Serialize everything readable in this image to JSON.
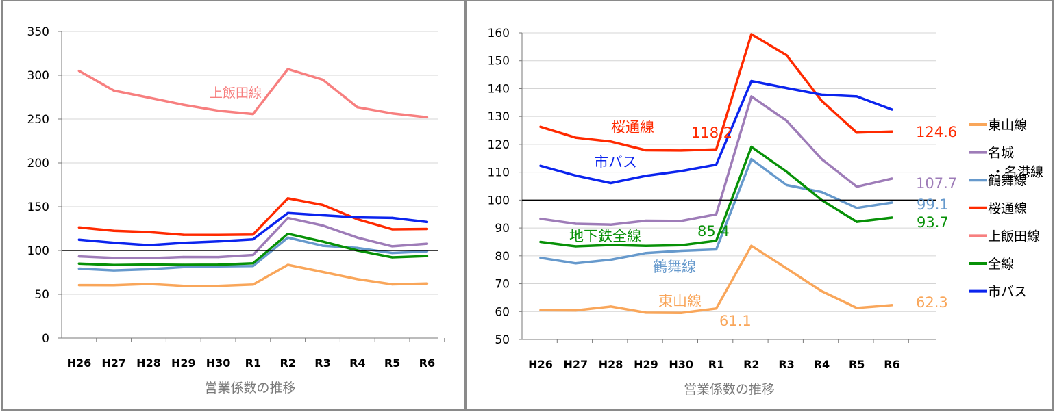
{
  "chart_data": [
    {
      "type": "line",
      "xlabel": "営業係数の推移",
      "ylim": [
        0,
        350
      ],
      "yticks": [
        0,
        50,
        100,
        150,
        200,
        250,
        300,
        350
      ],
      "ytick_labels": [
        "0",
        "50",
        "100",
        "150",
        "200",
        "250",
        "300",
        "350"
      ],
      "grid": true,
      "categories": [
        "H26",
        "H27",
        "H28",
        "H29",
        "H30",
        "R1",
        "R2",
        "R3",
        "R4",
        "R5",
        "R6"
      ],
      "reference_line": 100,
      "series": [
        {
          "name": "東山線",
          "color": "#f9a65a",
          "values": [
            60.5,
            60.4,
            61.8,
            59.6,
            59.5,
            61.1,
            83.6,
            75.5,
            67.3,
            61.3,
            62.3
          ]
        },
        {
          "name": "名城・名港線",
          "color": "#9e7cb8",
          "values": [
            93.3,
            91.5,
            91.2,
            92.6,
            92.5,
            94.9,
            137.2,
            128.5,
            114.7,
            104.8,
            107.7
          ]
        },
        {
          "name": "鶴舞線",
          "color": "#6699cc",
          "values": [
            79.3,
            77.3,
            78.6,
            81.0,
            81.8,
            82.3,
            114.7,
            105.4,
            102.9,
            97.2,
            99.1
          ]
        },
        {
          "name": "桜通線",
          "color": "#ff2a00",
          "values": [
            126.3,
            122.4,
            121.0,
            117.9,
            117.8,
            118.2,
            159.5,
            152.0,
            135.6,
            124.2,
            124.6
          ]
        },
        {
          "name": "上飯田線",
          "color": "#f77f7f",
          "values": [
            305.0,
            282.5,
            274.5,
            266.3,
            259.6,
            255.8,
            307.0,
            295.0,
            263.5,
            256.5,
            252.0
          ]
        },
        {
          "name": "全線",
          "color": "#079107",
          "values": [
            85.0,
            83.4,
            83.9,
            83.6,
            83.8,
            85.4,
            119.1,
            110.2,
            100.0,
            92.2,
            93.7
          ]
        },
        {
          "name": "市バス",
          "color": "#0b24ee",
          "values": [
            112.3,
            108.8,
            106.1,
            108.7,
            110.4,
            112.7,
            142.7,
            140.2,
            137.8,
            137.2,
            132.5
          ]
        }
      ],
      "annotations": [
        {
          "text": "上飯田線",
          "color": "#f77f7f"
        }
      ]
    },
    {
      "type": "line",
      "xlabel": "営業係数の推移",
      "ylim": [
        50,
        160
      ],
      "yticks": [
        50,
        60,
        70,
        80,
        90,
        100,
        110,
        120,
        130,
        140,
        150,
        160
      ],
      "ytick_labels": [
        "50",
        "60",
        "70",
        "80",
        "90",
        "100",
        "110",
        "120",
        "130",
        "140",
        "150",
        "160"
      ],
      "grid": true,
      "categories": [
        "H26",
        "H27",
        "H28",
        "H29",
        "H30",
        "R1",
        "R2",
        "R3",
        "R4",
        "R5",
        "R6"
      ],
      "reference_line": 100,
      "legend": {
        "position": "right",
        "entries": [
          {
            "label": "東山線",
            "color": "#f9a65a"
          },
          {
            "label": "名城",
            "label2": "・名港線",
            "color": "#9e7cb8"
          },
          {
            "label": "鶴舞線",
            "color": "#6699cc"
          },
          {
            "label": "桜通線",
            "color": "#ff2a00"
          },
          {
            "label": "上飯田線",
            "color": "#f77f7f"
          },
          {
            "label": "全線",
            "color": "#079107"
          },
          {
            "label": "市バス",
            "color": "#0b24ee"
          }
        ]
      },
      "series": [
        {
          "name": "東山線",
          "color": "#f9a65a",
          "values": [
            60.5,
            60.4,
            61.8,
            59.6,
            59.5,
            61.1,
            83.6,
            75.5,
            67.3,
            61.3,
            62.3
          ]
        },
        {
          "name": "名城・名港線",
          "color": "#9e7cb8",
          "values": [
            93.3,
            91.5,
            91.2,
            92.6,
            92.5,
            94.9,
            137.2,
            128.5,
            114.7,
            104.8,
            107.7
          ]
        },
        {
          "name": "鶴舞線",
          "color": "#6699cc",
          "values": [
            79.3,
            77.3,
            78.6,
            81.0,
            81.8,
            82.3,
            114.7,
            105.4,
            102.9,
            97.2,
            99.1
          ]
        },
        {
          "name": "桜通線",
          "color": "#ff2a00",
          "values": [
            126.3,
            122.4,
            121.0,
            117.9,
            117.8,
            118.2,
            159.5,
            152.0,
            135.6,
            124.2,
            124.6
          ]
        },
        {
          "name": "全線",
          "color": "#079107",
          "values": [
            85.0,
            83.4,
            83.9,
            83.6,
            83.8,
            85.4,
            119.1,
            110.2,
            100.0,
            92.2,
            93.7
          ]
        },
        {
          "name": "市バス",
          "color": "#0b24ee",
          "values": [
            112.3,
            108.8,
            106.1,
            108.7,
            110.4,
            112.7,
            142.7,
            140.2,
            137.8,
            137.2,
            132.5
          ]
        }
      ],
      "annotations": [
        {
          "text": "桜通線",
          "color": "#ff2a00"
        },
        {
          "text": "118.2",
          "color": "#ff2a00"
        },
        {
          "text": "124.6",
          "color": "#ff2a00"
        },
        {
          "text": "市バス",
          "color": "#0b24ee"
        },
        {
          "text": "107.7",
          "color": "#9e7cb8"
        },
        {
          "text": "99.1",
          "color": "#6699cc"
        },
        {
          "text": "93.7",
          "color": "#079107"
        },
        {
          "text": "地下鉄全線",
          "color": "#079107"
        },
        {
          "text": "85.4",
          "color": "#079107"
        },
        {
          "text": "鶴舞線",
          "color": "#6699cc"
        },
        {
          "text": "東山線",
          "color": "#f9a65a"
        },
        {
          "text": "61.1",
          "color": "#f9a65a"
        },
        {
          "text": "62.3",
          "color": "#f9a65a"
        }
      ]
    }
  ]
}
